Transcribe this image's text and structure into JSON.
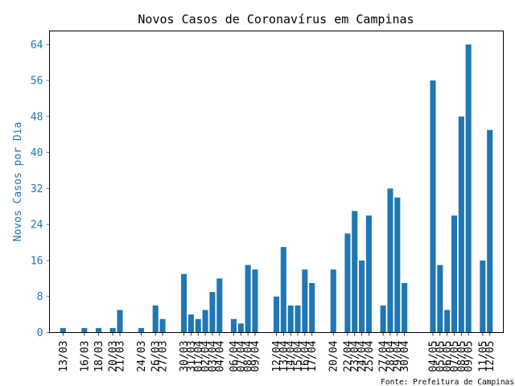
{
  "chart_data": {
    "type": "bar",
    "title": "Novos Casos de Coronavírus em Campinas",
    "xlabel": "",
    "ylabel": "Novos Casos por Dia",
    "ylim": [
      0,
      67
    ],
    "yticks": [
      0,
      8,
      16,
      24,
      32,
      40,
      48,
      56,
      64
    ],
    "day_start": "2020-03-13",
    "day_end": "2020-05-12",
    "bars": [
      {
        "date": "13/03",
        "value": 1
      },
      {
        "date": "16/03",
        "value": 1
      },
      {
        "date": "18/03",
        "value": 1
      },
      {
        "date": "20/03",
        "value": 1
      },
      {
        "date": "21/03",
        "value": 5
      },
      {
        "date": "24/03",
        "value": 1
      },
      {
        "date": "26/03",
        "value": 6
      },
      {
        "date": "27/03",
        "value": 3
      },
      {
        "date": "30/03",
        "value": 13
      },
      {
        "date": "31/03",
        "value": 4
      },
      {
        "date": "01/04",
        "value": 3
      },
      {
        "date": "02/04",
        "value": 5
      },
      {
        "date": "03/04",
        "value": 9
      },
      {
        "date": "04/04",
        "value": 12
      },
      {
        "date": "06/04",
        "value": 3
      },
      {
        "date": "07/04",
        "value": 2
      },
      {
        "date": "08/04",
        "value": 15
      },
      {
        "date": "09/04",
        "value": 14
      },
      {
        "date": "12/04",
        "value": 8
      },
      {
        "date": "13/04",
        "value": 19
      },
      {
        "date": "14/04",
        "value": 6
      },
      {
        "date": "15/04",
        "value": 6
      },
      {
        "date": "16/04",
        "value": 14
      },
      {
        "date": "17/04",
        "value": 11
      },
      {
        "date": "20/04",
        "value": 14
      },
      {
        "date": "22/04",
        "value": 22
      },
      {
        "date": "23/04",
        "value": 27
      },
      {
        "date": "24/04",
        "value": 16
      },
      {
        "date": "25/04",
        "value": 26
      },
      {
        "date": "27/04",
        "value": 6
      },
      {
        "date": "28/04",
        "value": 32
      },
      {
        "date": "29/04",
        "value": 30
      },
      {
        "date": "30/04",
        "value": 11
      },
      {
        "date": "04/05",
        "value": 56
      },
      {
        "date": "05/05",
        "value": 15
      },
      {
        "date": "06/05",
        "value": 5
      },
      {
        "date": "07/05",
        "value": 26
      },
      {
        "date": "08/05",
        "value": 48
      },
      {
        "date": "09/05",
        "value": 64
      },
      {
        "date": "11/05",
        "value": 16
      },
      {
        "date": "12/05",
        "value": 45
      }
    ],
    "bar_color": "#1f77b4",
    "grid": false,
    "source": "Fonte: Prefeitura de Campinas"
  }
}
